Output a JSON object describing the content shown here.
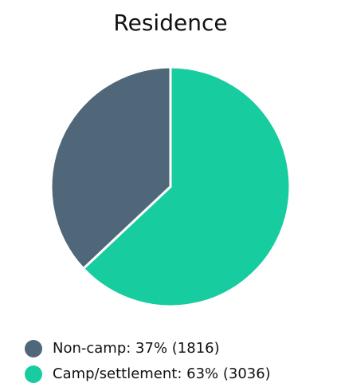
{
  "chart_data": {
    "type": "pie",
    "title": "Residence",
    "categories": [
      "Non-camp: 37% (1816)",
      "Camp/settlement: 63% (3036)"
    ],
    "values": [
      37,
      63
    ],
    "colors": [
      "#4f6778",
      "#17cc9e"
    ],
    "legend": "bottom"
  }
}
